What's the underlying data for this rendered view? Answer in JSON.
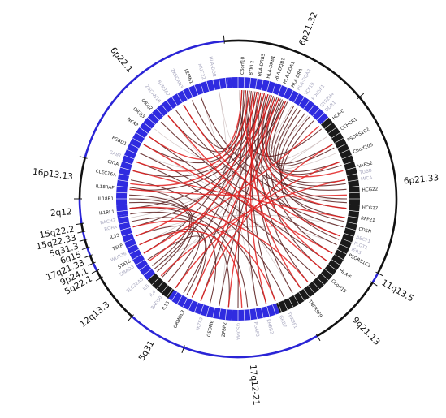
{
  "figure": {
    "colors": {
      "outer_ring_blue": "#2a24d6",
      "outer_ring_black": "#111111",
      "segment_blue": "#2f2be0",
      "segment_black": "#1a1a1a",
      "link_dark": "#5a1e1e",
      "link_red": "#e02020",
      "link_grey": "#c8b6b6",
      "gene_dark": "#151515",
      "gene_faint": "#a7a7bf"
    },
    "bands": [
      {
        "label": "6p21.32",
        "start": 355,
        "end": 50,
        "color": "black"
      },
      {
        "label": "6p21.33",
        "start": 50,
        "end": 118,
        "color": "black"
      },
      {
        "label": "11q13.5",
        "start": 118,
        "end": 122,
        "color": "blue"
      },
      {
        "label": "9q21.13",
        "start": 122,
        "end": 150,
        "color": "black"
      },
      {
        "label": "17q12-21",
        "start": 150,
        "end": 200,
        "color": "blue"
      },
      {
        "label": "5q31",
        "start": 200,
        "end": 222,
        "color": "blue"
      },
      {
        "label": "12q13.3",
        "start": 222,
        "end": 240,
        "color": "black"
      },
      {
        "label": "5q22.1",
        "start": 240,
        "end": 243,
        "color": "black"
      },
      {
        "label": "9p24.1",
        "start": 243,
        "end": 246,
        "color": "blue"
      },
      {
        "label": "17q21.33",
        "start": 246,
        "end": 249,
        "color": "black"
      },
      {
        "label": "6q15",
        "start": 249,
        "end": 252,
        "color": "blue"
      },
      {
        "label": "5q31.3",
        "start": 252,
        "end": 255,
        "color": "black"
      },
      {
        "label": "15q22.33",
        "start": 255,
        "end": 258,
        "color": "blue"
      },
      {
        "label": "15q22.2",
        "start": 258,
        "end": 261,
        "color": "black"
      },
      {
        "label": "2q12",
        "start": 261,
        "end": 270,
        "color": "blue"
      },
      {
        "label": "16p13.13",
        "start": 270,
        "end": 285,
        "color": "black"
      },
      {
        "label": "6p22.1",
        "start": 285,
        "end": 355,
        "color": "blue"
      }
    ],
    "segments": [
      {
        "start": 355,
        "end": 48,
        "color": "blue"
      },
      {
        "start": 48,
        "end": 120,
        "color": "black"
      },
      {
        "start": 120,
        "end": 160,
        "color": "black"
      },
      {
        "start": 160,
        "end": 215,
        "color": "blue"
      },
      {
        "start": 215,
        "end": 228,
        "color": "black"
      },
      {
        "start": 228,
        "end": 262,
        "color": "blue"
      },
      {
        "start": 262,
        "end": 355,
        "color": "blue"
      }
    ],
    "genes": [
      {
        "label": "C6orf10",
        "angle": 2,
        "tone": "dark"
      },
      {
        "label": "BTNL2",
        "angle": 6,
        "tone": "dark"
      },
      {
        "label": "HLA-DRB5",
        "angle": 10,
        "tone": "dark"
      },
      {
        "label": "HLA-DRB1",
        "angle": 14,
        "tone": "dark"
      },
      {
        "label": "HLA-DQB1",
        "angle": 18,
        "tone": "dark"
      },
      {
        "label": "HLA-DQA1",
        "angle": 22,
        "tone": "dark"
      },
      {
        "label": "HLA-DRA",
        "angle": 26,
        "tone": "dark"
      },
      {
        "label": "TCF19",
        "angle": 33,
        "tone": "faint"
      },
      {
        "label": "POU5F1",
        "angle": 37,
        "tone": "faint"
      },
      {
        "label": "HLA-C",
        "angle": 50,
        "tone": "dark"
      },
      {
        "label": "CCHCR1",
        "angle": 56,
        "tone": "dark"
      },
      {
        "label": "PSORS1C2",
        "angle": 62,
        "tone": "dark"
      },
      {
        "label": "C6orf205",
        "angle": 68,
        "tone": "dark"
      },
      {
        "label": "VARS2",
        "angle": 75,
        "tone": "dark"
      },
      {
        "label": "HCG22",
        "angle": 86,
        "tone": "dark"
      },
      {
        "label": "HCG27",
        "angle": 94,
        "tone": "dark"
      },
      {
        "label": "RPP21",
        "angle": 99,
        "tone": "dark"
      },
      {
        "label": "CDSN",
        "angle": 104,
        "tone": "dark"
      },
      {
        "label": "PSORS1C1",
        "angle": 117,
        "tone": "dark"
      },
      {
        "label": "HLA-F",
        "angle": 125,
        "tone": "dark"
      },
      {
        "label": "C6orf15",
        "angle": 131,
        "tone": "dark"
      },
      {
        "label": "TNFRSF9",
        "angle": 145,
        "tone": "dark"
      },
      {
        "label": "ZPBP2",
        "angle": 186,
        "tone": "dark"
      },
      {
        "label": "GSDMB",
        "angle": 192,
        "tone": "dark"
      },
      {
        "label": "ORMDL3",
        "angle": 206,
        "tone": "dark"
      },
      {
        "label": "IL13",
        "angle": 214,
        "tone": "dark"
      },
      {
        "label": "STAT6",
        "angle": 240,
        "tone": "dark"
      },
      {
        "label": "TSLP",
        "angle": 248,
        "tone": "dark"
      },
      {
        "label": "IL33",
        "angle": 253,
        "tone": "dark"
      },
      {
        "label": "IL1RL1",
        "angle": 264,
        "tone": "dark"
      },
      {
        "label": "IL18R1",
        "angle": 270,
        "tone": "dark"
      },
      {
        "label": "IL18RAP",
        "angle": 275,
        "tone": "dark"
      },
      {
        "label": "CLEC16A",
        "angle": 281,
        "tone": "dark"
      },
      {
        "label": "CIITA",
        "angle": 286,
        "tone": "dark"
      },
      {
        "label": "PGBD1",
        "angle": 296,
        "tone": "dark"
      },
      {
        "label": "NKAP",
        "angle": 306,
        "tone": "dark"
      },
      {
        "label": "OR2J3",
        "angle": 311,
        "tone": "dark"
      },
      {
        "label": "OR2J2",
        "angle": 316,
        "tone": "dark"
      },
      {
        "label": "ZSCAN16",
        "angle": 321,
        "tone": "faint"
      },
      {
        "label": "LEMN1",
        "angle": 338,
        "tone": "dark"
      },
      {
        "label": "ZKSCAN3",
        "angle": 333,
        "tone": "faint"
      },
      {
        "label": "MUC22",
        "angle": 344,
        "tone": "faint"
      },
      {
        "label": "FLOT1",
        "angle": 111,
        "tone": "faint"
      },
      {
        "label": "ABCF1",
        "angle": 108,
        "tone": "faint"
      },
      {
        "label": "IER3",
        "angle": 114,
        "tone": "faint"
      },
      {
        "label": "MICA",
        "angle": 81,
        "tone": "faint"
      },
      {
        "label": "TUBB",
        "angle": 78,
        "tone": "faint"
      },
      {
        "label": "DDR1",
        "angle": 45,
        "tone": "faint"
      },
      {
        "label": "GTF2H4",
        "angle": 42,
        "tone": "faint"
      },
      {
        "label": "SMAD3",
        "angle": 237,
        "tone": "faint"
      },
      {
        "label": "WDR36",
        "angle": 244,
        "tone": "faint"
      },
      {
        "label": "IKZF3",
        "angle": 197,
        "tone": "faint"
      },
      {
        "label": "GSDMA",
        "angle": 180,
        "tone": "faint"
      },
      {
        "label": "RAD50",
        "angle": 218,
        "tone": "faint"
      },
      {
        "label": "IL4",
        "angle": 222,
        "tone": "faint"
      },
      {
        "label": "IL5",
        "angle": 226,
        "tone": "faint"
      },
      {
        "label": "SLC22A5",
        "angle": 230,
        "tone": "faint"
      },
      {
        "label": "ERBB2",
        "angle": 166,
        "tone": "faint"
      },
      {
        "label": "PGAP3",
        "angle": 172,
        "tone": "faint"
      },
      {
        "label": "TBKBP1",
        "angle": 156,
        "tone": "faint"
      },
      {
        "label": "GRB7",
        "angle": 160,
        "tone": "faint"
      },
      {
        "label": "RORA",
        "angle": 257,
        "tone": "faint"
      },
      {
        "label": "BACH2",
        "angle": 260,
        "tone": "faint"
      },
      {
        "label": "GAB1",
        "angle": 290,
        "tone": "faint"
      },
      {
        "label": "BTN3A2",
        "angle": 326,
        "tone": "faint"
      },
      {
        "label": "HLA-DQA2",
        "angle": 29,
        "tone": "faint"
      },
      {
        "label": "HLA-DOB",
        "angle": 349,
        "tone": "faint"
      }
    ],
    "links": [
      {
        "from": 2,
        "to": 330,
        "tone": "dark"
      },
      {
        "from": 6,
        "to": 320,
        "tone": "dark"
      },
      {
        "from": 10,
        "to": 300,
        "tone": "dark"
      },
      {
        "from": 14,
        "to": 285,
        "tone": "dark"
      },
      {
        "from": 18,
        "to": 275,
        "tone": "dark"
      },
      {
        "from": 22,
        "to": 265,
        "tone": "dark"
      },
      {
        "from": 26,
        "to": 255,
        "tone": "dark"
      },
      {
        "from": 4,
        "to": 240,
        "tone": "dark"
      },
      {
        "from": 8,
        "to": 230,
        "tone": "dark"
      },
      {
        "from": 12,
        "to": 220,
        "tone": "dark"
      },
      {
        "from": 16,
        "to": 210,
        "tone": "dark"
      },
      {
        "from": 20,
        "to": 200,
        "tone": "dark"
      },
      {
        "from": 24,
        "to": 190,
        "tone": "dark"
      },
      {
        "from": 3,
        "to": 180,
        "tone": "dark"
      },
      {
        "from": 7,
        "to": 170,
        "tone": "dark"
      },
      {
        "from": 11,
        "to": 160,
        "tone": "dark"
      },
      {
        "from": 15,
        "to": 150,
        "tone": "dark"
      },
      {
        "from": 19,
        "to": 140,
        "tone": "dark"
      },
      {
        "from": 23,
        "to": 130,
        "tone": "dark"
      },
      {
        "from": 27,
        "to": 120,
        "tone": "dark"
      },
      {
        "from": 5,
        "to": 110,
        "tone": "dark"
      },
      {
        "from": 9,
        "to": 100,
        "tone": "dark"
      },
      {
        "from": 13,
        "to": 90,
        "tone": "dark"
      },
      {
        "from": 17,
        "to": 80,
        "tone": "dark"
      },
      {
        "from": 21,
        "to": 70,
        "tone": "dark"
      },
      {
        "from": 25,
        "to": 60,
        "tone": "dark"
      },
      {
        "from": 1,
        "to": 50,
        "tone": "dark"
      },
      {
        "from": 340,
        "to": 85,
        "tone": "dark"
      },
      {
        "from": 335,
        "to": 95,
        "tone": "dark"
      },
      {
        "from": 325,
        "to": 105,
        "tone": "dark"
      },
      {
        "from": 315,
        "to": 115,
        "tone": "dark"
      },
      {
        "from": 305,
        "to": 125,
        "tone": "dark"
      },
      {
        "from": 295,
        "to": 135,
        "tone": "dark"
      },
      {
        "from": 290,
        "to": 145,
        "tone": "dark"
      },
      {
        "from": 280,
        "to": 155,
        "tone": "dark"
      },
      {
        "from": 270,
        "to": 165,
        "tone": "dark"
      },
      {
        "from": 265,
        "to": 175,
        "tone": "dark"
      },
      {
        "from": 262,
        "to": 185,
        "tone": "dark"
      },
      {
        "from": 258,
        "to": 195,
        "tone": "dark"
      },
      {
        "from": 250,
        "to": 205,
        "tone": "dark"
      },
      {
        "from": 245,
        "to": 215,
        "tone": "dark"
      },
      {
        "from": 236,
        "to": 208,
        "tone": "dark"
      },
      {
        "from": 268,
        "to": 232,
        "tone": "dark"
      },
      {
        "from": 272,
        "to": 228,
        "tone": "dark"
      },
      {
        "from": 276,
        "to": 224,
        "tone": "dark"
      },
      {
        "from": 31,
        "to": 62,
        "tone": "dark"
      },
      {
        "from": 33,
        "to": 72,
        "tone": "dark"
      },
      {
        "from": 35,
        "to": 82,
        "tone": "dark"
      },
      {
        "from": 38,
        "to": 92,
        "tone": "dark"
      },
      {
        "from": 41,
        "to": 102,
        "tone": "dark"
      },
      {
        "from": 44,
        "to": 112,
        "tone": "dark"
      },
      {
        "from": 2,
        "to": 305,
        "tone": "red"
      },
      {
        "from": 6,
        "to": 290,
        "tone": "red"
      },
      {
        "from": 10,
        "to": 278,
        "tone": "red"
      },
      {
        "from": 14,
        "to": 250,
        "tone": "red"
      },
      {
        "from": 18,
        "to": 235,
        "tone": "red"
      },
      {
        "from": 22,
        "to": 205,
        "tone": "red"
      },
      {
        "from": 26,
        "to": 185,
        "tone": "red"
      },
      {
        "from": 12,
        "to": 165,
        "tone": "red"
      },
      {
        "from": 8,
        "to": 145,
        "tone": "red"
      },
      {
        "from": 4,
        "to": 125,
        "tone": "red"
      },
      {
        "from": 16,
        "to": 95,
        "tone": "red"
      },
      {
        "from": 20,
        "to": 75,
        "tone": "red"
      },
      {
        "from": 330,
        "to": 110,
        "tone": "red"
      },
      {
        "from": 320,
        "to": 130,
        "tone": "red"
      },
      {
        "from": 300,
        "to": 120,
        "tone": "red"
      },
      {
        "from": 285,
        "to": 100,
        "tone": "red"
      },
      {
        "from": 275,
        "to": 88,
        "tone": "red"
      },
      {
        "from": 265,
        "to": 140,
        "tone": "red"
      },
      {
        "from": 255,
        "to": 160,
        "tone": "red"
      },
      {
        "from": 245,
        "to": 178,
        "tone": "red"
      },
      {
        "from": 60,
        "to": 200,
        "tone": "red"
      },
      {
        "from": 70,
        "to": 215,
        "tone": "red"
      },
      {
        "from": 80,
        "to": 225,
        "tone": "red"
      },
      {
        "from": 48,
        "to": 240,
        "tone": "red"
      },
      {
        "from": 5,
        "to": 350,
        "tone": "grey"
      },
      {
        "from": 30,
        "to": 200,
        "tone": "grey"
      },
      {
        "from": 40,
        "to": 260,
        "tone": "grey"
      },
      {
        "from": 55,
        "to": 295,
        "tone": "grey"
      },
      {
        "from": 65,
        "to": 310,
        "tone": "grey"
      },
      {
        "from": 90,
        "to": 270,
        "tone": "grey"
      },
      {
        "from": 105,
        "to": 250,
        "tone": "grey"
      },
      {
        "from": 115,
        "to": 230,
        "tone": "grey"
      },
      {
        "from": 135,
        "to": 300,
        "tone": "grey"
      },
      {
        "from": 150,
        "to": 320,
        "tone": "grey"
      },
      {
        "from": 170,
        "to": 340,
        "tone": "grey"
      },
      {
        "from": 190,
        "to": 350,
        "tone": "grey"
      },
      {
        "from": 210,
        "to": 15,
        "tone": "grey"
      },
      {
        "from": 225,
        "to": 35,
        "tone": "grey"
      },
      {
        "from": 245,
        "to": 55,
        "tone": "grey"
      }
    ]
  }
}
